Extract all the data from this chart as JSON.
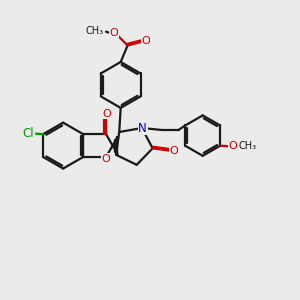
{
  "bg": "#ebebeb",
  "bc": "#1a1a1a",
  "oc": "#cc0000",
  "nc": "#0000cc",
  "clc": "#009900",
  "lw": 1.6,
  "figsize": [
    3.0,
    3.0
  ],
  "dpi": 100,
  "xlim": [
    0,
    10
  ],
  "ylim": [
    0,
    10
  ]
}
